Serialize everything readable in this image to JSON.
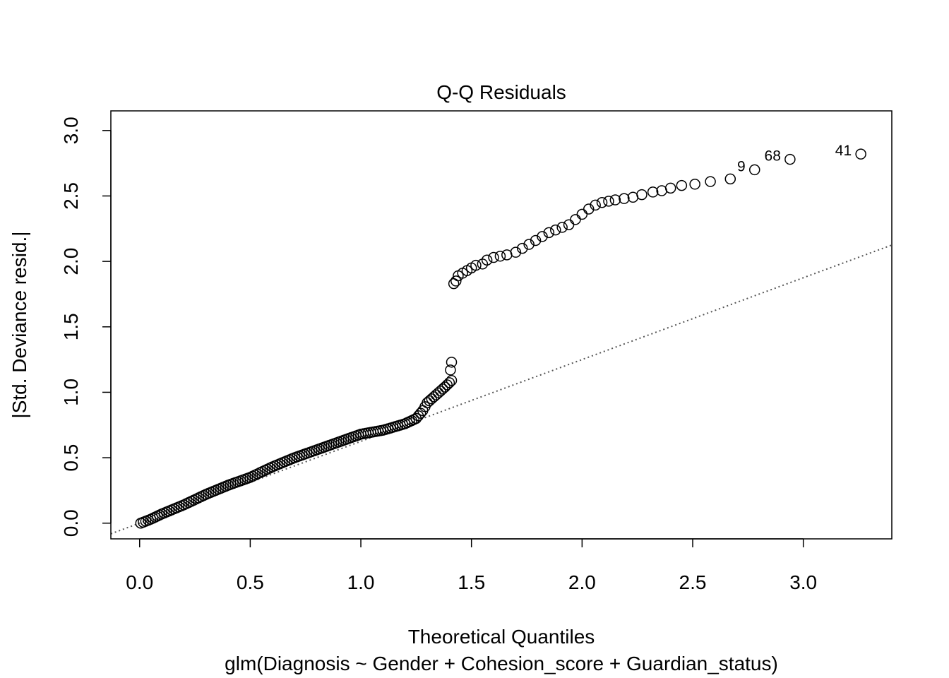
{
  "chart_data": {
    "type": "scatter",
    "title": "Q-Q Residuals",
    "xlabel": "Theoretical Quantiles",
    "ylabel": "|Std. Deviance resid.|",
    "subtitle": "glm(Diagnosis ~ Gender + Cohesion_score + Guardian_status)",
    "xlim": [
      -0.13,
      3.4
    ],
    "ylim": [
      -0.12,
      3.15
    ],
    "x_ticks": [
      "0.0",
      "0.5",
      "1.0",
      "1.5",
      "2.0",
      "2.5",
      "3.0"
    ],
    "y_ticks": [
      "0.0",
      "0.5",
      "1.0",
      "1.5",
      "2.0",
      "2.5",
      "3.0"
    ],
    "grid": false,
    "reference_line": {
      "style": "dotted",
      "color": "#555555",
      "intercept": 0,
      "slope": 0.625
    },
    "lower_curve": [
      [
        0.005,
        0.0
      ],
      [
        0.05,
        0.03
      ],
      [
        0.1,
        0.07
      ],
      [
        0.2,
        0.14
      ],
      [
        0.3,
        0.22
      ],
      [
        0.4,
        0.29
      ],
      [
        0.5,
        0.35
      ],
      [
        0.6,
        0.43
      ],
      [
        0.7,
        0.5
      ],
      [
        0.8,
        0.56
      ],
      [
        0.9,
        0.62
      ],
      [
        1.0,
        0.68
      ],
      [
        1.1,
        0.71
      ],
      [
        1.2,
        0.76
      ],
      [
        1.25,
        0.8
      ],
      [
        1.28,
        0.86
      ],
      [
        1.3,
        0.92
      ],
      [
        1.34,
        0.98
      ],
      [
        1.38,
        1.04
      ],
      [
        1.41,
        1.09
      ]
    ],
    "lower_tail_points": [
      [
        1.405,
        1.17
      ],
      [
        1.41,
        1.23
      ]
    ],
    "upper_points": [
      [
        1.42,
        1.83
      ],
      [
        1.43,
        1.85
      ],
      [
        1.44,
        1.89
      ],
      [
        1.46,
        1.91
      ],
      [
        1.48,
        1.93
      ],
      [
        1.5,
        1.95
      ],
      [
        1.52,
        1.97
      ],
      [
        1.55,
        1.98
      ],
      [
        1.57,
        2.01
      ],
      [
        1.6,
        2.03
      ],
      [
        1.63,
        2.04
      ],
      [
        1.66,
        2.05
      ],
      [
        1.7,
        2.07
      ],
      [
        1.73,
        2.1
      ],
      [
        1.76,
        2.13
      ],
      [
        1.79,
        2.16
      ],
      [
        1.82,
        2.19
      ],
      [
        1.85,
        2.22
      ],
      [
        1.88,
        2.24
      ],
      [
        1.91,
        2.26
      ],
      [
        1.94,
        2.28
      ],
      [
        1.97,
        2.32
      ],
      [
        2.0,
        2.36
      ],
      [
        2.03,
        2.4
      ],
      [
        2.06,
        2.43
      ],
      [
        2.09,
        2.45
      ],
      [
        2.12,
        2.46
      ],
      [
        2.15,
        2.47
      ],
      [
        2.19,
        2.48
      ],
      [
        2.23,
        2.49
      ],
      [
        2.27,
        2.51
      ],
      [
        2.32,
        2.53
      ],
      [
        2.36,
        2.54
      ],
      [
        2.4,
        2.56
      ],
      [
        2.45,
        2.58
      ],
      [
        2.51,
        2.59
      ],
      [
        2.58,
        2.61
      ],
      [
        2.67,
        2.63
      ],
      [
        2.78,
        2.7
      ],
      [
        2.94,
        2.78
      ],
      [
        3.26,
        2.82
      ]
    ],
    "point_labels": [
      {
        "label": "9",
        "x": 2.78,
        "y": 2.7
      },
      {
        "label": "68",
        "x": 2.94,
        "y": 2.78
      },
      {
        "label": "41",
        "x": 3.26,
        "y": 2.82
      }
    ]
  }
}
